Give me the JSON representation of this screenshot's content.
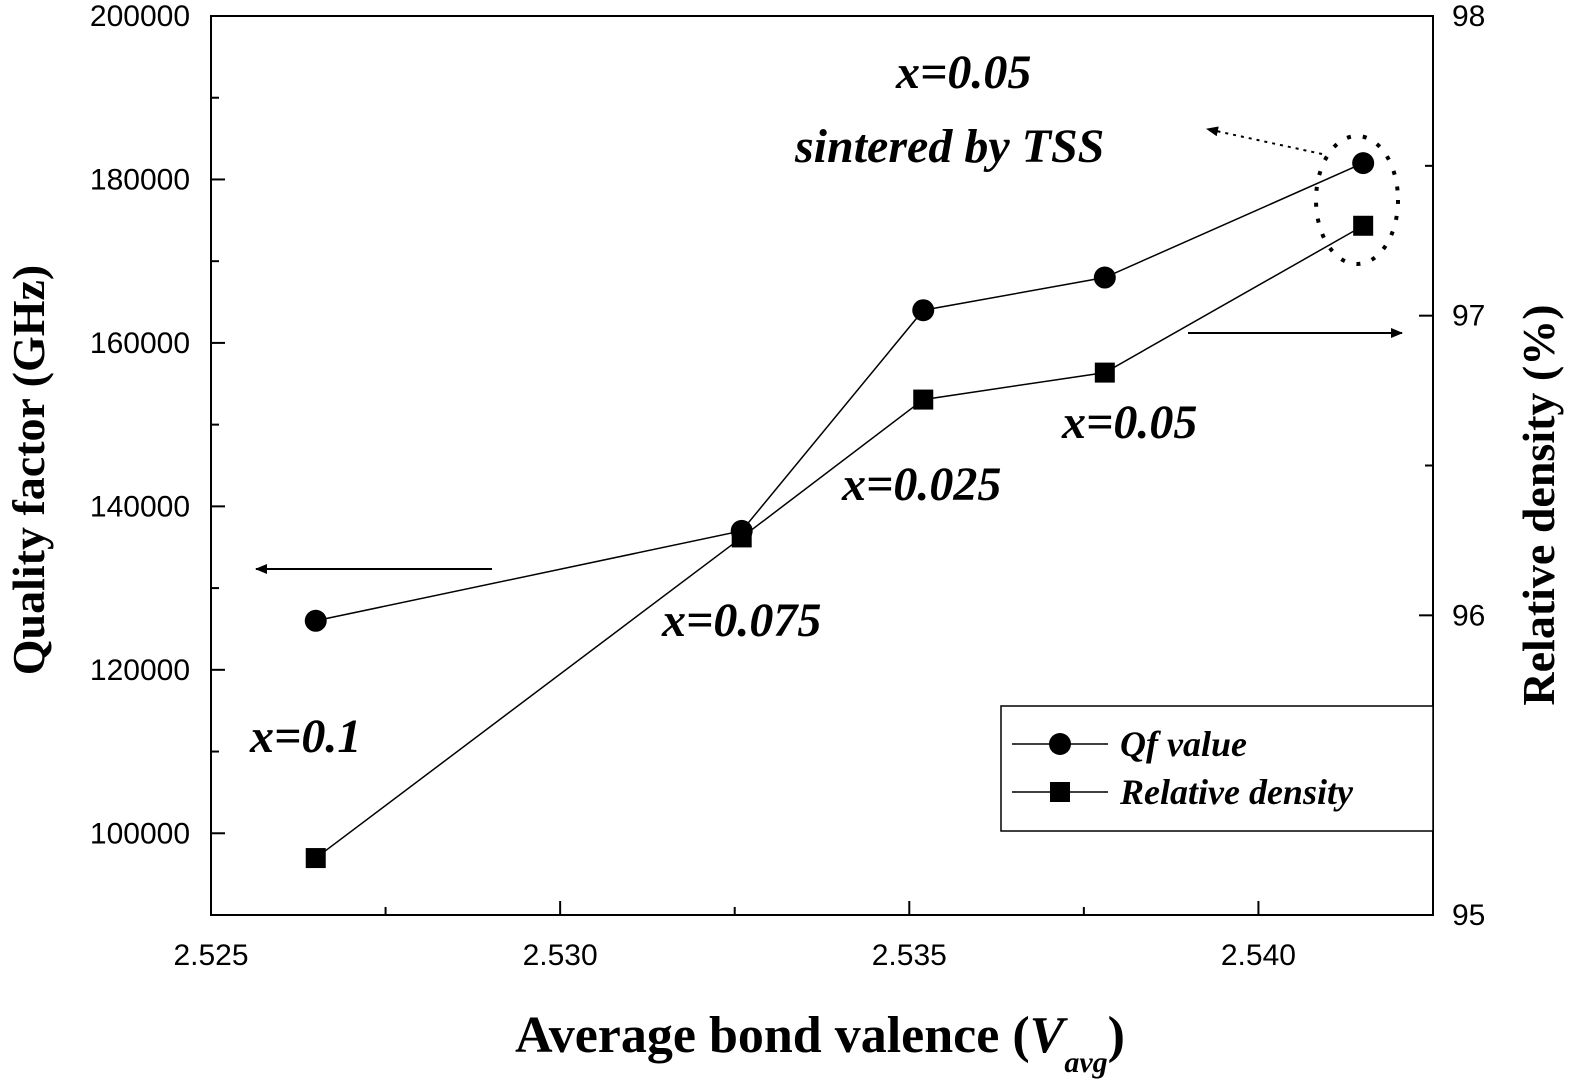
{
  "chart_data": {
    "type": "line",
    "title": "",
    "xlabel": "Average bond valence (",
    "xlabel_var": "V",
    "xlabel_sub": "avg",
    "xlabel_close": ")",
    "ylabel": "Quality factor (GHz)",
    "y2label": "Relative density (%)",
    "xlim": [
      2.525,
      2.5425
    ],
    "ylim": [
      90000,
      200000
    ],
    "y2lim": [
      95,
      98
    ],
    "xticks": [
      "2.525",
      "2.530",
      "2.535",
      "2.540"
    ],
    "xtick_values": [
      2.525,
      2.53,
      2.535,
      2.54
    ],
    "yticks": [
      "100000",
      "120000",
      "140000",
      "160000",
      "180000",
      "200000"
    ],
    "ytick_values": [
      100000,
      120000,
      140000,
      160000,
      180000,
      200000
    ],
    "y2ticks": [
      "95",
      "96",
      "97",
      "98"
    ],
    "y2tick_values": [
      95,
      96,
      97,
      98
    ],
    "x": [
      2.5265,
      2.5326,
      2.5352,
      2.5378,
      2.5415
    ],
    "series": [
      {
        "name": "Qf value",
        "axis": "left",
        "marker": "circle",
        "values": [
          126000,
          137000,
          164000,
          168000,
          182000
        ]
      },
      {
        "name": "Relative density",
        "axis": "right",
        "marker": "square",
        "values": [
          95.19,
          96.26,
          96.72,
          96.81,
          97.3
        ]
      }
    ],
    "annotations": [
      "x=0.1",
      "x=0.075",
      "x=0.025",
      "x=0.05",
      "x=0.05",
      "sintered by TSS"
    ],
    "legend_position": "bottom-right"
  }
}
